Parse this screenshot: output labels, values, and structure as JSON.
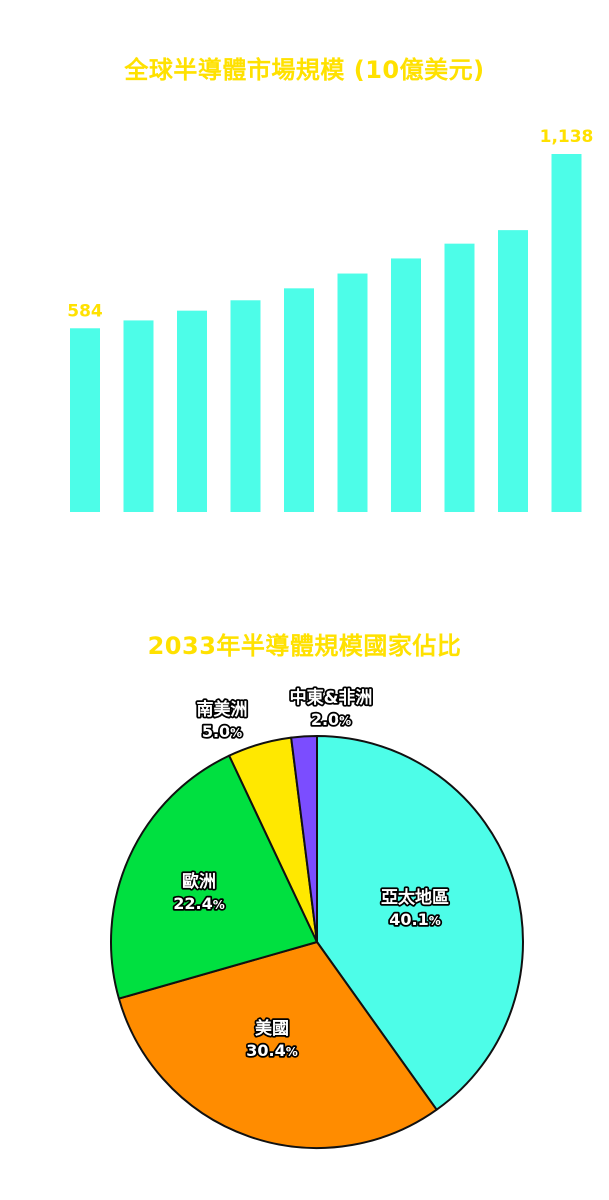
{
  "colors": {
    "title": "#ffe100",
    "bar": "#4dfde8",
    "label": "#ffe100"
  },
  "chart_data": [
    {
      "type": "bar",
      "title": "全球半導體市場規模 (10億美元)",
      "xlabel": "",
      "ylabel": "",
      "ylim": [
        0,
        1150
      ],
      "grid": false,
      "series": [
        {
          "values": [
            584,
            609,
            640,
            673,
            711,
            758,
            806,
            853,
            896,
            1138
          ]
        }
      ],
      "value_labels": [
        {
          "index": 0,
          "text": "584"
        },
        {
          "index": 9,
          "text": "1,138"
        }
      ]
    },
    {
      "type": "pie",
      "title": "2033年半導體規模國家佔比",
      "slices": [
        {
          "label": "亞太地區",
          "value": 40.1,
          "pct_text": "40.1",
          "color": "#4dfde8"
        },
        {
          "label": "美國",
          "value": 30.4,
          "pct_text": "30.4",
          "color": "#ff8c00"
        },
        {
          "label": "歐洲",
          "value": 22.4,
          "pct_text": "22.4",
          "color": "#00e040"
        },
        {
          "label": "南美洲",
          "value": 5.0,
          "pct_text": "5.0",
          "color": "#ffe800"
        },
        {
          "label": "中東&非洲",
          "value": 2.0,
          "pct_text": "2.0",
          "color": "#7b4dff"
        }
      ],
      "start": "top",
      "direction": "clockwise"
    }
  ]
}
